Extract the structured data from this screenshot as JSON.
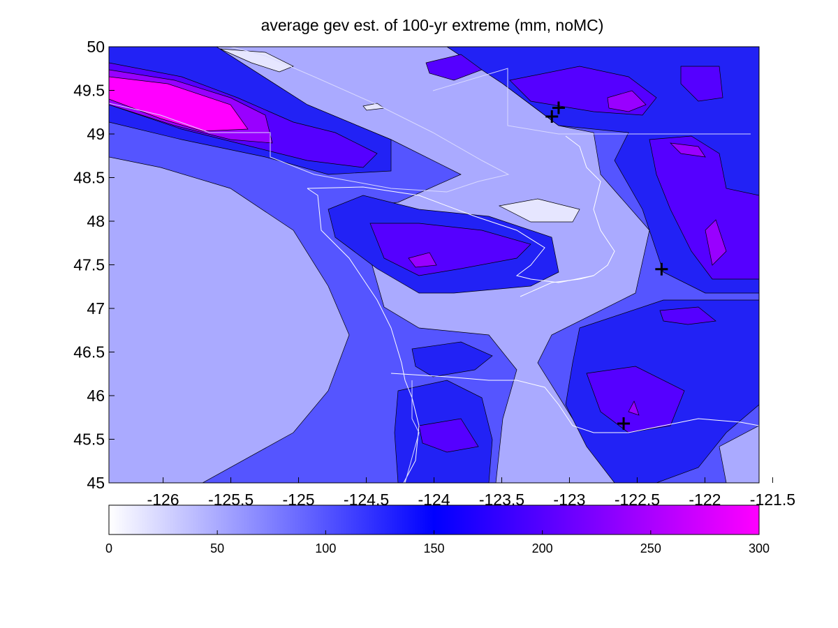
{
  "title": "average gev est. of 100-yr extreme (mm, noMC)",
  "map": {
    "lon_range": [
      -126.4,
      -121.6
    ],
    "lat_range": [
      45,
      50
    ],
    "x_ticks": [
      {
        "value": -126,
        "label": "-126"
      },
      {
        "value": -125.5,
        "label": "-125.5"
      },
      {
        "value": -125,
        "label": "-125"
      },
      {
        "value": -124.5,
        "label": "-124.5"
      },
      {
        "value": -124,
        "label": "-124"
      },
      {
        "value": -123.5,
        "label": "-123.5"
      },
      {
        "value": -123,
        "label": "-123"
      },
      {
        "value": -122.5,
        "label": "-122.5"
      },
      {
        "value": -122,
        "label": "-122"
      },
      {
        "value": -121.5,
        "label": "-121.5"
      }
    ],
    "y_ticks": [
      {
        "value": 50,
        "label": "50"
      },
      {
        "value": 49.5,
        "label": "49.5"
      },
      {
        "value": 49,
        "label": "49"
      },
      {
        "value": 48.5,
        "label": "48.5"
      },
      {
        "value": 48,
        "label": "48"
      },
      {
        "value": 47.5,
        "label": "47.5"
      },
      {
        "value": 47,
        "label": "47"
      },
      {
        "value": 46.5,
        "label": "46.5"
      },
      {
        "value": 46,
        "label": "46"
      },
      {
        "value": 45.5,
        "label": "45.5"
      },
      {
        "value": 45,
        "label": "45"
      }
    ],
    "station_markers": [
      {
        "lon": -123.13,
        "lat": 49.2
      },
      {
        "lon": -123.08,
        "lat": 49.3
      },
      {
        "lon": -122.32,
        "lat": 47.45
      },
      {
        "lon": -122.6,
        "lat": 45.68
      }
    ]
  },
  "colorbar": {
    "range": [
      0,
      300
    ],
    "ticks": [
      {
        "value": 0,
        "label": "0"
      },
      {
        "value": 50,
        "label": "50"
      },
      {
        "value": 100,
        "label": "100"
      },
      {
        "value": 150,
        "label": "150"
      },
      {
        "value": 200,
        "label": "200"
      },
      {
        "value": 250,
        "label": "250"
      },
      {
        "value": 300,
        "label": "300"
      }
    ],
    "stops": [
      {
        "value": 0,
        "color": "#ffffff"
      },
      {
        "value": 150,
        "color": "#0000ff"
      },
      {
        "value": 300,
        "color": "#ff00ff"
      }
    ]
  },
  "colors": {
    "level_0_50": "#e6e6ff",
    "level_50_75": "#aaaaff",
    "level_75_100": "#8080ff",
    "level_100_125": "#5555ff",
    "level_125_150": "#2222f5",
    "level_150_175": "#2b00ff",
    "level_175_200": "#5500ff",
    "level_200_250": "#9900ff",
    "level_250_300": "#ff00ff",
    "coastline": "#ffffff",
    "contour_line": "#000000",
    "marker": "#000000"
  }
}
